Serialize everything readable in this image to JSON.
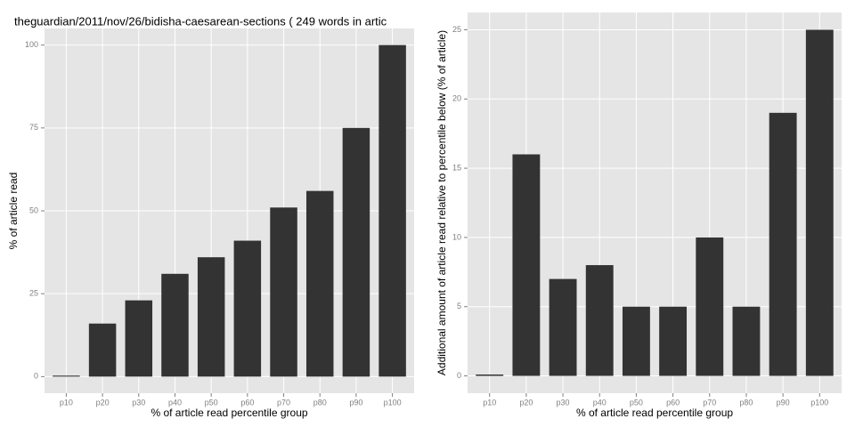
{
  "chart_data": [
    {
      "type": "bar",
      "title": "theguardian/2011/nov/26/bidisha-caesarean-sections ( 249 words in artic",
      "x_label": "% of article read percentile group",
      "y_label": "% of article read",
      "categories": [
        "p10",
        "p20",
        "p30",
        "p40",
        "p50",
        "p60",
        "p70",
        "p80",
        "p90",
        "p100"
      ],
      "values": [
        0.3,
        16,
        23,
        31,
        36,
        41,
        51,
        56,
        75,
        100
      ],
      "color": "#333333",
      "ylim": [
        -5,
        105
      ],
      "yticks": [
        0,
        25,
        50,
        75,
        100
      ],
      "grid": true
    },
    {
      "type": "bar",
      "x_label": "% of article read percentile group",
      "y_label": "Additional amount of article read relative to percentile below (% of article)",
      "categories": [
        "p10",
        "p20",
        "p30",
        "p40",
        "p50",
        "p60",
        "p70",
        "p80",
        "p90",
        "p100"
      ],
      "values": [
        0.1,
        16,
        7,
        8,
        5,
        5,
        10,
        5,
        19,
        25
      ],
      "color": "#333333",
      "ylim": [
        -1.25,
        26.25
      ],
      "yticks": [
        0,
        5,
        10,
        15,
        20,
        25
      ],
      "grid": true
    }
  ]
}
